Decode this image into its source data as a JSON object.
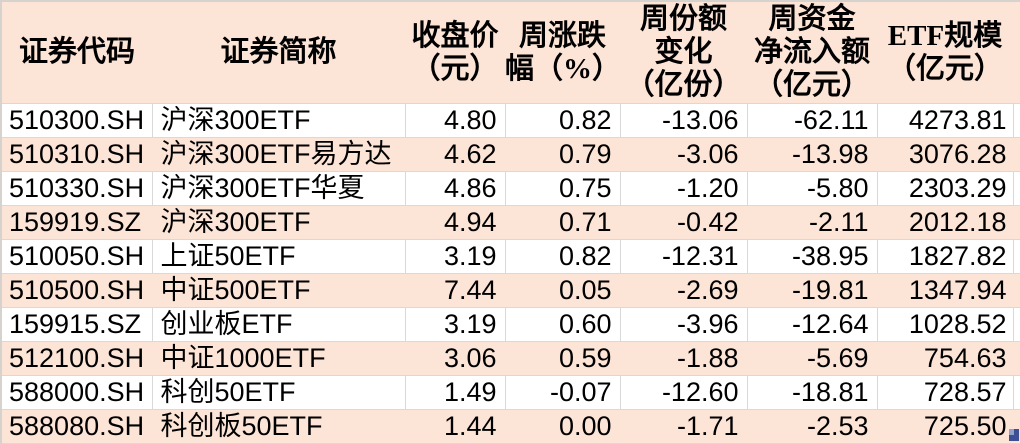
{
  "chart_data": {
    "type": "table",
    "columns": [
      "证券代码",
      "证券简称",
      "收盘价\n（元）",
      "周涨跌\n幅（%）",
      "周份额\n变化\n（亿份）",
      "周资金\n净流入额\n（亿元）",
      "ETF规模\n（亿元）"
    ],
    "column_keys": [
      "code",
      "name",
      "close",
      "change",
      "share-change",
      "net-inflow",
      "scale"
    ],
    "rows": [
      [
        "510300.SH",
        "沪深300ETF",
        "4.80",
        "0.82",
        "-13.06",
        "-62.11",
        "4273.81"
      ],
      [
        "510310.SH",
        "沪深300ETF易方达",
        "4.62",
        "0.79",
        "-3.06",
        "-13.98",
        "3076.28"
      ],
      [
        "510330.SH",
        "沪深300ETF华夏",
        "4.86",
        "0.75",
        "-1.20",
        "-5.80",
        "2303.29"
      ],
      [
        "159919.SZ",
        "沪深300ETF",
        "4.94",
        "0.71",
        "-0.42",
        "-2.11",
        "2012.18"
      ],
      [
        "510050.SH",
        "上证50ETF",
        "3.19",
        "0.82",
        "-12.31",
        "-38.95",
        "1827.82"
      ],
      [
        "510500.SH",
        "中证500ETF",
        "7.44",
        "0.05",
        "-2.69",
        "-19.81",
        "1347.94"
      ],
      [
        "159915.SZ",
        "创业板ETF",
        "3.19",
        "0.60",
        "-3.96",
        "-12.64",
        "1028.52"
      ],
      [
        "512100.SH",
        "中证1000ETF",
        "3.06",
        "0.59",
        "-1.88",
        "-5.69",
        "754.63"
      ],
      [
        "588000.SH",
        "科创50ETF",
        "1.49",
        "-0.07",
        "-12.60",
        "-18.81",
        "728.57"
      ],
      [
        "588080.SH",
        "科创板50ETF",
        "1.44",
        "0.00",
        "-1.71",
        "-2.53",
        "725.50"
      ]
    ],
    "layout": {
      "alternating_rows": "odd rows white, even rows peach",
      "grid": "light gray gridlines on white rows only"
    }
  },
  "style": {
    "page_bg": "#ffffff",
    "header_bg": "#fce4d6",
    "row_bg": "#ffffff",
    "row_alt_bg": "#fce4d6",
    "grid": "#d9d9d9",
    "edge": "#d6d2ce",
    "text": "#000000",
    "watermark_dark": "#3f4f95",
    "watermark_light": "#93a0cc"
  }
}
